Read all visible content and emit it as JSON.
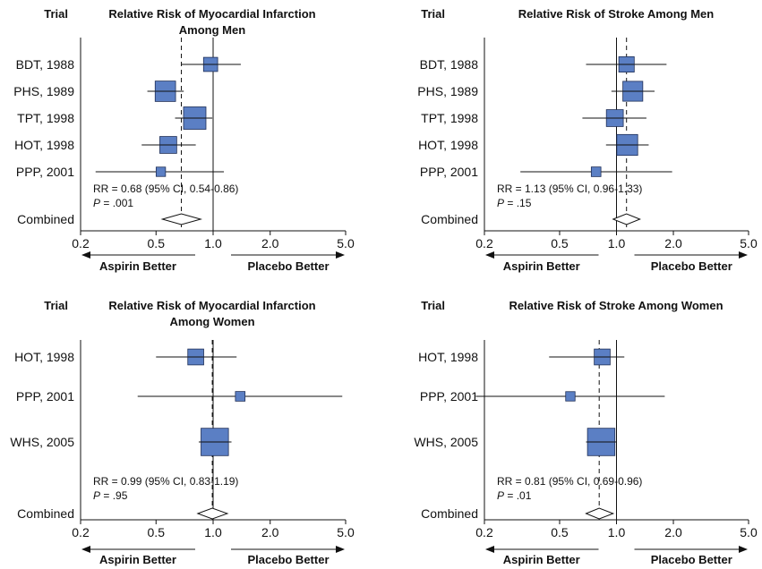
{
  "colors": {
    "box": "#5b7fc4",
    "box_stroke": "#1f2f57",
    "line": "#111111"
  },
  "chart_data": [
    {
      "type": "forest",
      "column_header": "Trial",
      "title_lines": [
        "Relative Risk of Myocardial Infarction",
        "Among Men"
      ],
      "x_scale": "log",
      "xlim": [
        0.2,
        5.0
      ],
      "ticks": [
        0.2,
        0.5,
        1.0,
        2.0,
        5.0
      ],
      "tick_labels": [
        "0.2",
        "0.5",
        "1.0",
        "2.0",
        "5.0"
      ],
      "rows": [
        {
          "label": "BDT, 1988",
          "rr": 0.97,
          "lo": 0.68,
          "hi": 1.4,
          "weight": 0.35
        },
        {
          "label": "PHS, 1989",
          "rr": 0.56,
          "lo": 0.45,
          "hi": 0.7,
          "weight": 0.6
        },
        {
          "label": "TPT, 1998",
          "rr": 0.8,
          "lo": 0.63,
          "hi": 0.99,
          "weight": 0.68
        },
        {
          "label": "HOT, 1998",
          "rr": 0.58,
          "lo": 0.42,
          "hi": 0.81,
          "weight": 0.46
        },
        {
          "label": "PPP, 2001",
          "rr": 0.53,
          "lo": 0.24,
          "hi": 1.14,
          "weight": 0.16
        }
      ],
      "combined": {
        "label": "Combined",
        "rr": 0.68,
        "lo": 0.54,
        "hi": 0.86
      },
      "stat_text": "RR = 0.68 (95% CI, 0.54-0.86)",
      "p_label": "P",
      "p_value": " = .001",
      "favor_left": "Aspirin Better",
      "favor_right": "Placebo Better"
    },
    {
      "type": "forest",
      "column_header": "Trial",
      "title_lines": [
        "Relative Risk of Stroke Among Men"
      ],
      "x_scale": "log",
      "xlim": [
        0.2,
        5.0
      ],
      "ticks": [
        0.2,
        0.5,
        1.0,
        2.0,
        5.0
      ],
      "tick_labels": [
        "0.2",
        "0.5",
        "1.0",
        "2.0",
        "5.0"
      ],
      "rows": [
        {
          "label": "BDT, 1988",
          "rr": 1.13,
          "lo": 0.69,
          "hi": 1.84,
          "weight": 0.4
        },
        {
          "label": "PHS, 1989",
          "rr": 1.22,
          "lo": 0.94,
          "hi": 1.59,
          "weight": 0.58
        },
        {
          "label": "TPT, 1998",
          "rr": 0.98,
          "lo": 0.66,
          "hi": 1.44,
          "weight": 0.46
        },
        {
          "label": "HOT, 1998",
          "rr": 1.14,
          "lo": 0.88,
          "hi": 1.48,
          "weight": 0.62
        },
        {
          "label": "PPP, 2001",
          "rr": 0.78,
          "lo": 0.31,
          "hi": 1.97,
          "weight": 0.17
        }
      ],
      "combined": {
        "label": "Combined",
        "rr": 1.13,
        "lo": 0.96,
        "hi": 1.33
      },
      "stat_text": "RR = 1.13 (95% CI, 0.96-1.33)",
      "p_label": "P",
      "p_value": " = .15",
      "favor_left": "Aspirin Better",
      "favor_right": "Placebo Better"
    },
    {
      "type": "forest",
      "column_header": "Trial",
      "title_lines": [
        "Relative Risk of Myocardial Infarction",
        "Among Women"
      ],
      "x_scale": "log",
      "xlim": [
        0.2,
        5.0
      ],
      "ticks": [
        0.2,
        0.5,
        1.0,
        2.0,
        5.0
      ],
      "tick_labels": [
        "0.2",
        "0.5",
        "1.0",
        "2.0",
        "5.0"
      ],
      "rows": [
        {
          "label": "HOT, 1998",
          "rr": 0.81,
          "lo": 0.5,
          "hi": 1.33,
          "weight": 0.42
        },
        {
          "label": "PPP, 2001",
          "rr": 1.39,
          "lo": 0.4,
          "hi": 4.8,
          "weight": 0.17
        },
        {
          "label": "WHS, 2005",
          "rr": 1.02,
          "lo": 0.84,
          "hi": 1.25,
          "weight": 0.88
        }
      ],
      "combined": {
        "label": "Combined",
        "rr": 0.99,
        "lo": 0.83,
        "hi": 1.19
      },
      "stat_text": "RR = 0.99 (95% CI, 0.83-1.19)",
      "p_label": "P",
      "p_value": " = .95",
      "favor_left": "Aspirin Better",
      "favor_right": "Placebo Better"
    },
    {
      "type": "forest",
      "column_header": "Trial",
      "title_lines": [
        "Relative Risk of Stroke Among Women"
      ],
      "x_scale": "log",
      "xlim": [
        0.2,
        5.0
      ],
      "ticks": [
        0.2,
        0.5,
        1.0,
        2.0,
        5.0
      ],
      "tick_labels": [
        "0.2",
        "0.5",
        "1.0",
        "2.0",
        "5.0"
      ],
      "rows": [
        {
          "label": "HOT, 1998",
          "rr": 0.84,
          "lo": 0.44,
          "hi": 1.1,
          "weight": 0.42
        },
        {
          "label": "PPP, 2001",
          "rr": 0.57,
          "lo": 0.18,
          "hi": 1.8,
          "weight": 0.16
        },
        {
          "label": "WHS, 2005",
          "rr": 0.83,
          "lo": 0.69,
          "hi": 1.0,
          "weight": 0.88
        }
      ],
      "combined": {
        "label": "Combined",
        "rr": 0.81,
        "lo": 0.69,
        "hi": 0.96
      },
      "stat_text": "RR = 0.81 (95% CI, 0.69-0.96)",
      "p_label": "P",
      "p_value": " = .01",
      "favor_left": "Aspirin Better",
      "favor_right": "Placebo Better"
    }
  ]
}
